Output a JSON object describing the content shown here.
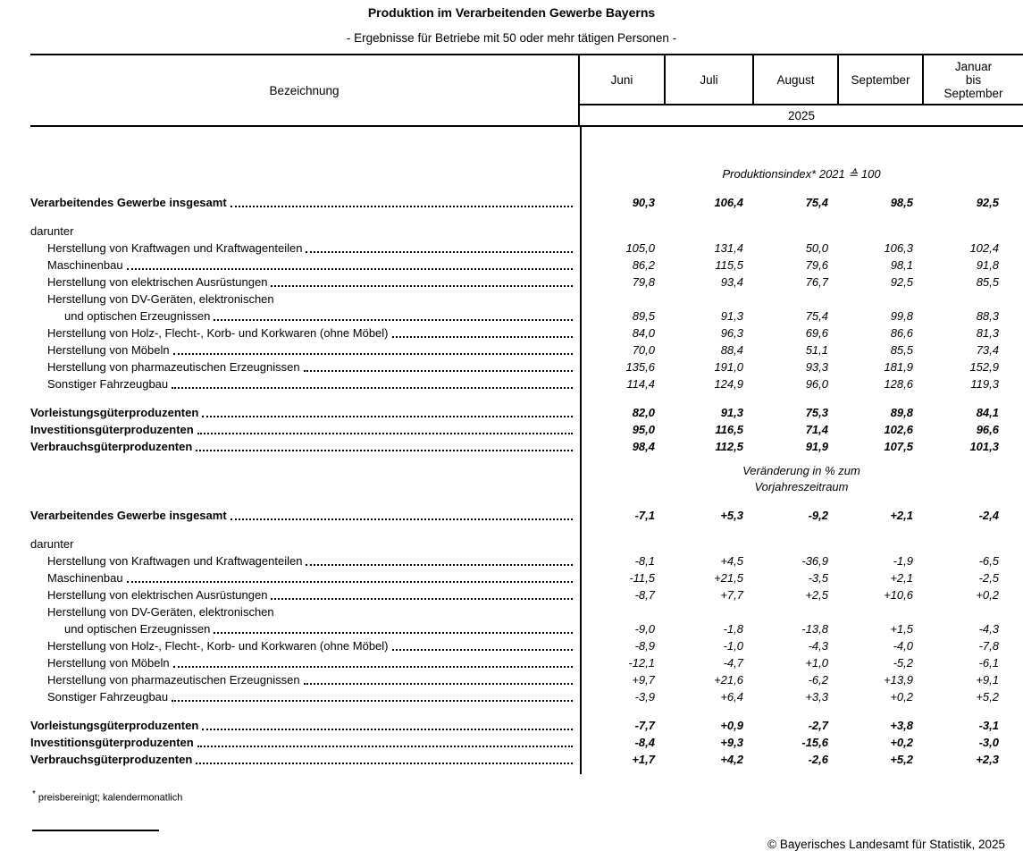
{
  "title": "Produktion im Verarbeitenden Gewerbe Bayerns",
  "subtitle": "- Ergebnisse für Betriebe mit 50 oder mehr tätigen Personen -",
  "table": {
    "header": {
      "col_label": "Bezeichnung",
      "months": [
        "Juni",
        "Juli",
        "August",
        "September"
      ],
      "period_lines": [
        "Januar",
        "bis",
        "September"
      ],
      "year": "2025"
    },
    "sections": [
      {
        "caption_lines": [
          "Produktionsindex* 2021 ≙ 100"
        ],
        "rows": [
          {
            "spacer": true
          },
          {
            "label": "Verarbeitendes Gewerbe insgesamt",
            "indent": 0,
            "bold": true,
            "leader": true,
            "values": [
              "90,3",
              "106,4",
              "75,4",
              "98,5",
              "92,5"
            ]
          },
          {
            "spacer": true
          },
          {
            "label": "darunter",
            "indent": 0,
            "bold": false,
            "leader": false,
            "values": null
          },
          {
            "label": "Herstellung von Kraftwagen und Kraftwagenteilen",
            "indent": 1,
            "bold": false,
            "leader": true,
            "values": [
              "105,0",
              "131,4",
              "50,0",
              "106,3",
              "102,4"
            ]
          },
          {
            "label": "Maschinenbau",
            "indent": 1,
            "bold": false,
            "leader": true,
            "values": [
              "86,2",
              "115,5",
              "79,6",
              "98,1",
              "91,8"
            ]
          },
          {
            "label": "Herstellung von elektrischen Ausrüstungen",
            "indent": 1,
            "bold": false,
            "leader": true,
            "values": [
              "79,8",
              "93,4",
              "76,7",
              "92,5",
              "85,5"
            ]
          },
          {
            "label": "Herstellung von DV-Geräten, elektronischen",
            "indent": 1,
            "bold": false,
            "leader": false,
            "values": null
          },
          {
            "label": "und optischen Erzeugnissen",
            "indent": 2,
            "bold": false,
            "leader": true,
            "values": [
              "89,5",
              "91,3",
              "75,4",
              "99,8",
              "88,3"
            ]
          },
          {
            "label": "Herstellung von Holz-, Flecht-, Korb- und Korkwaren (ohne Möbel)",
            "indent": 1,
            "bold": false,
            "leader": true,
            "values": [
              "84,0",
              "96,3",
              "69,6",
              "86,6",
              "81,3"
            ]
          },
          {
            "label": "Herstellung von Möbeln",
            "indent": 1,
            "bold": false,
            "leader": true,
            "values": [
              "70,0",
              "88,4",
              "51,1",
              "85,5",
              "73,4"
            ]
          },
          {
            "label": "Herstellung von pharmazeutischen Erzeugnissen",
            "indent": 1,
            "bold": false,
            "leader": true,
            "values": [
              "135,6",
              "191,0",
              "93,3",
              "181,9",
              "152,9"
            ]
          },
          {
            "label": "Sonstiger Fahrzeugbau",
            "indent": 1,
            "bold": false,
            "leader": true,
            "values": [
              "114,4",
              "124,9",
              "96,0",
              "128,6",
              "119,3"
            ]
          },
          {
            "spacer": true
          },
          {
            "label": "Vorleistungsgüterproduzenten",
            "indent": 0,
            "bold": true,
            "leader": true,
            "values": [
              "82,0",
              "91,3",
              "75,3",
              "89,8",
              "84,1"
            ]
          },
          {
            "label": "Investitionsgüterproduzenten",
            "indent": 0,
            "bold": true,
            "leader": true,
            "values": [
              "95,0",
              "116,5",
              "71,4",
              "102,6",
              "96,6"
            ]
          },
          {
            "label": "Verbrauchsgüterproduzenten",
            "indent": 0,
            "bold": true,
            "leader": true,
            "values": [
              "98,4",
              "112,5",
              "91,9",
              "107,5",
              "101,3"
            ]
          }
        ]
      },
      {
        "caption_lines": [
          "Veränderung in % zum",
          "Vorjahreszeitraum"
        ],
        "rows": [
          {
            "spacer": true
          },
          {
            "label": "Verarbeitendes Gewerbe insgesamt",
            "indent": 0,
            "bold": true,
            "leader": true,
            "values": [
              "-7,1",
              "+5,3",
              "-9,2",
              "+2,1",
              "-2,4"
            ]
          },
          {
            "spacer": true
          },
          {
            "label": "darunter",
            "indent": 0,
            "bold": false,
            "leader": false,
            "values": null
          },
          {
            "label": "Herstellung von Kraftwagen und Kraftwagenteilen",
            "indent": 1,
            "bold": false,
            "leader": true,
            "values": [
              "-8,1",
              "+4,5",
              "-36,9",
              "-1,9",
              "-6,5"
            ]
          },
          {
            "label": "Maschinenbau",
            "indent": 1,
            "bold": false,
            "leader": true,
            "values": [
              "-11,5",
              "+21,5",
              "-3,5",
              "+2,1",
              "-2,5"
            ]
          },
          {
            "label": "Herstellung von elektrischen Ausrüstungen",
            "indent": 1,
            "bold": false,
            "leader": true,
            "values": [
              "-8,7",
              "+7,7",
              "+2,5",
              "+10,6",
              "+0,2"
            ]
          },
          {
            "label": "Herstellung von DV-Geräten, elektronischen",
            "indent": 1,
            "bold": false,
            "leader": false,
            "values": null
          },
          {
            "label": "und optischen Erzeugnissen",
            "indent": 2,
            "bold": false,
            "leader": true,
            "values": [
              "-9,0",
              "-1,8",
              "-13,8",
              "+1,5",
              "-4,3"
            ]
          },
          {
            "label": "Herstellung von Holz-, Flecht-, Korb- und Korkwaren (ohne Möbel)",
            "indent": 1,
            "bold": false,
            "leader": true,
            "values": [
              "-8,9",
              "-1,0",
              "-4,3",
              "-4,0",
              "-7,8"
            ]
          },
          {
            "label": "Herstellung von Möbeln",
            "indent": 1,
            "bold": false,
            "leader": true,
            "values": [
              "-12,1",
              "-4,7",
              "+1,0",
              "-5,2",
              "-6,1"
            ]
          },
          {
            "label": "Herstellung von pharmazeutischen Erzeugnissen",
            "indent": 1,
            "bold": false,
            "leader": true,
            "values": [
              "+9,7",
              "+21,6",
              "-6,2",
              "+13,9",
              "+9,1"
            ]
          },
          {
            "label": "Sonstiger Fahrzeugbau",
            "indent": 1,
            "bold": false,
            "leader": true,
            "values": [
              "-3,9",
              "+6,4",
              "+3,3",
              "+0,2",
              "+5,2"
            ]
          },
          {
            "spacer": true
          },
          {
            "label": "Vorleistungsgüterproduzenten",
            "indent": 0,
            "bold": true,
            "leader": true,
            "values": [
              "-7,7",
              "+0,9",
              "-2,7",
              "+3,8",
              "-3,1"
            ]
          },
          {
            "label": "Investitionsgüterproduzenten",
            "indent": 0,
            "bold": true,
            "leader": true,
            "values": [
              "-8,4",
              "+9,3",
              "-15,6",
              "+0,2",
              "-3,0"
            ]
          },
          {
            "label": "Verbrauchsgüterproduzenten",
            "indent": 0,
            "bold": true,
            "leader": true,
            "values": [
              "+1,7",
              "+4,2",
              "-2,6",
              "+5,2",
              "+2,3"
            ]
          }
        ]
      }
    ]
  },
  "footnote": {
    "marker": "*",
    "text": "preisbereinigt; kalendermonatlich"
  },
  "copyright": "© Bayerisches Landesamt für Statistik, 2025"
}
